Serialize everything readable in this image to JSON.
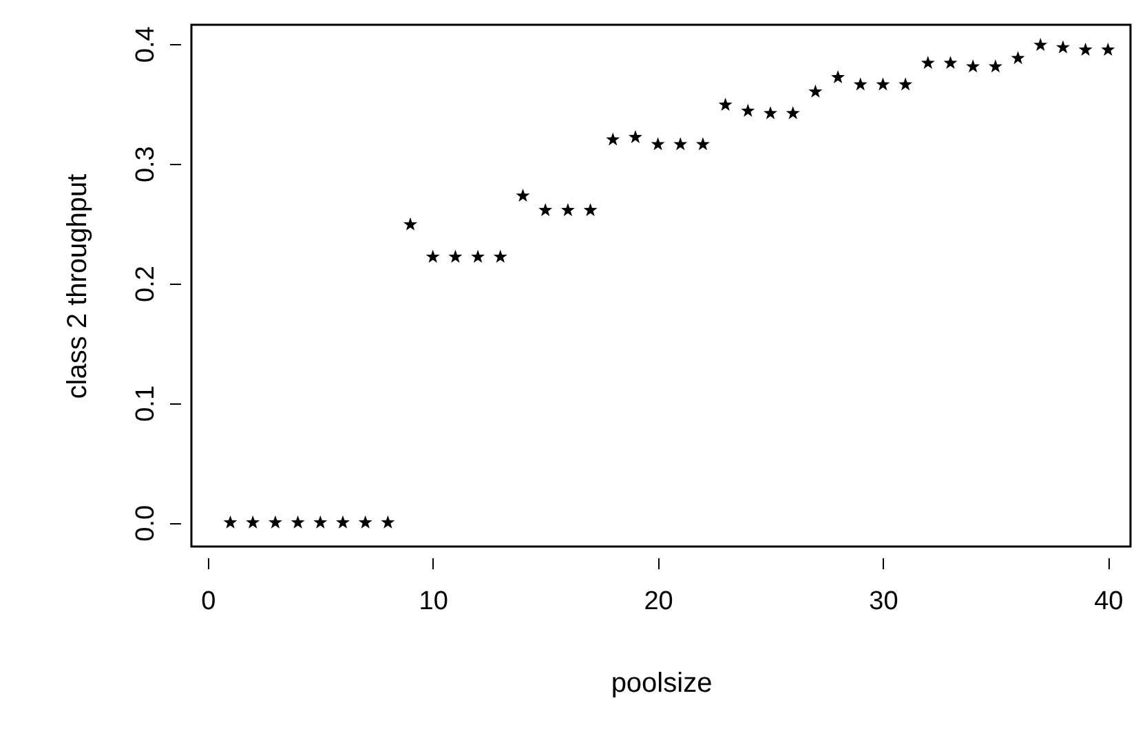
{
  "chart_data": {
    "type": "scatter",
    "xlabel": "poolsize",
    "ylabel": "class 2 throughput",
    "x": [
      1,
      2,
      3,
      4,
      5,
      6,
      7,
      8,
      9,
      10,
      11,
      12,
      13,
      14,
      15,
      16,
      17,
      18,
      19,
      20,
      21,
      22,
      23,
      24,
      25,
      26,
      27,
      28,
      29,
      30,
      31,
      32,
      33,
      34,
      35,
      36,
      37,
      38,
      39,
      40
    ],
    "series": [
      {
        "color": "#000000",
        "values": [
          0,
          0,
          0,
          0,
          0,
          0,
          0,
          0,
          0.249,
          0.222,
          0.222,
          0.222,
          0.222,
          0.273,
          0.261,
          0.261,
          0.261,
          0.32,
          0.322,
          0.316,
          0.316,
          0.316,
          0.349,
          0.344,
          0.342,
          0.342,
          0.36,
          0.372,
          0.366,
          0.366,
          0.366,
          0.384,
          0.384,
          0.381,
          0.381,
          0.388,
          0.399,
          0.397,
          0.395,
          0.395
        ]
      }
    ],
    "marker": "star",
    "grid": false,
    "xlim": [
      -0.73,
      41.0
    ],
    "ylim": [
      -0.02,
      0.416
    ],
    "xticks": [
      0,
      10,
      20,
      30,
      40
    ],
    "yticks": [
      {
        "value": 0,
        "label": "0.0"
      },
      0.1,
      0.2,
      0.3,
      0.4
    ]
  }
}
